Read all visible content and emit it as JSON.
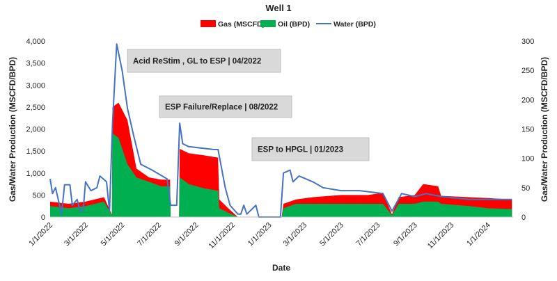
{
  "chart_data": {
    "type": "area",
    "title": "Well 1",
    "xlabel": "Date",
    "ylabel_left": "Gas/Water Production (MSCFD/BPD)",
    "ylabel_right": "Gas/Water Production (MSCFD/BPD)",
    "ylim_left": [
      0,
      4000
    ],
    "ylim_right": [
      0,
      300
    ],
    "left_ticks": [
      "0",
      "500",
      "1,000",
      "1,500",
      "2,000",
      "2,500",
      "3,000",
      "3,500",
      "4,000"
    ],
    "right_ticks": [
      "0",
      "50",
      "100",
      "150",
      "200",
      "250",
      "300"
    ],
    "x_ticks": [
      "1/1/2022",
      "3/1/2022",
      "5/1/2022",
      "7/1/2022",
      "9/1/2022",
      "11/1/2022",
      "1/1/2023",
      "3/1/2023",
      "5/1/2023",
      "7/1/2023",
      "9/1/2023",
      "11/1/2023",
      "1/1/2024"
    ],
    "legend_position": "top-center",
    "grid": false,
    "series": [
      {
        "name": "Gas (MSCFD)",
        "axis": "left",
        "type": "area",
        "color": "#ff0000",
        "points": [
          [
            "2022-01-01",
            0
          ],
          [
            "2022-01-01",
            350
          ],
          [
            "2022-02-01",
            300
          ],
          [
            "2022-03-01",
            350
          ],
          [
            "2022-04-01",
            450
          ],
          [
            "2022-04-14",
            50
          ],
          [
            "2022-04-15",
            2500
          ],
          [
            "2022-04-25",
            2600
          ],
          [
            "2022-05-10",
            2200
          ],
          [
            "2022-05-25",
            1100
          ],
          [
            "2022-06-15",
            900
          ],
          [
            "2022-07-05",
            850
          ],
          [
            "2022-07-20",
            850
          ],
          [
            "2022-07-21",
            0
          ],
          [
            "2022-08-04",
            0
          ],
          [
            "2022-08-05",
            1550
          ],
          [
            "2022-08-20",
            1450
          ],
          [
            "2022-09-15",
            1400
          ],
          [
            "2022-10-08",
            1350
          ],
          [
            "2022-10-10",
            400
          ],
          [
            "2022-10-25",
            200
          ],
          [
            "2022-11-10",
            0
          ],
          [
            "2023-01-22",
            0
          ],
          [
            "2023-01-25",
            300
          ],
          [
            "2023-02-15",
            400
          ],
          [
            "2023-03-15",
            450
          ],
          [
            "2023-05-01",
            500
          ],
          [
            "2023-06-15",
            500
          ],
          [
            "2023-07-10",
            550
          ],
          [
            "2023-07-25",
            60
          ],
          [
            "2023-08-05",
            450
          ],
          [
            "2023-09-01",
            500
          ],
          [
            "2023-09-15",
            750
          ],
          [
            "2023-10-10",
            700
          ],
          [
            "2023-10-15",
            480
          ],
          [
            "2023-12-01",
            450
          ],
          [
            "2024-01-01",
            430
          ],
          [
            "2024-02-10",
            400
          ]
        ]
      },
      {
        "name": "Oil (BPD)",
        "axis": "left",
        "type": "area",
        "color": "#00b050",
        "points": [
          [
            "2022-01-01",
            0
          ],
          [
            "2022-01-01",
            250
          ],
          [
            "2022-02-01",
            200
          ],
          [
            "2022-03-01",
            250
          ],
          [
            "2022-04-01",
            350
          ],
          [
            "2022-04-14",
            40
          ],
          [
            "2022-04-15",
            1900
          ],
          [
            "2022-04-25",
            1800
          ],
          [
            "2022-05-10",
            1200
          ],
          [
            "2022-05-25",
            900
          ],
          [
            "2022-06-15",
            800
          ],
          [
            "2022-07-05",
            700
          ],
          [
            "2022-07-20",
            700
          ],
          [
            "2022-07-21",
            0
          ],
          [
            "2022-08-04",
            0
          ],
          [
            "2022-08-05",
            900
          ],
          [
            "2022-08-20",
            750
          ],
          [
            "2022-09-15",
            650
          ],
          [
            "2022-10-08",
            600
          ],
          [
            "2022-10-10",
            200
          ],
          [
            "2022-10-25",
            100
          ],
          [
            "2022-11-10",
            0
          ],
          [
            "2023-01-22",
            0
          ],
          [
            "2023-01-25",
            200
          ],
          [
            "2023-02-15",
            300
          ],
          [
            "2023-03-15",
            300
          ],
          [
            "2023-05-01",
            300
          ],
          [
            "2023-06-15",
            300
          ],
          [
            "2023-07-10",
            300
          ],
          [
            "2023-07-25",
            40
          ],
          [
            "2023-08-05",
            300
          ],
          [
            "2023-09-01",
            300
          ],
          [
            "2023-09-15",
            350
          ],
          [
            "2023-10-10",
            350
          ],
          [
            "2023-10-15",
            300
          ],
          [
            "2023-12-01",
            250
          ],
          [
            "2024-01-01",
            200
          ],
          [
            "2024-02-10",
            180
          ]
        ]
      },
      {
        "name": "Water (BPD)",
        "axis": "right",
        "type": "line",
        "color": "#4472c4",
        "points": [
          [
            "2022-01-01",
            65
          ],
          [
            "2022-01-05",
            40
          ],
          [
            "2022-01-10",
            50
          ],
          [
            "2022-01-20",
            5
          ],
          [
            "2022-01-25",
            55
          ],
          [
            "2022-02-03",
            55
          ],
          [
            "2022-02-07",
            20
          ],
          [
            "2022-02-15",
            30
          ],
          [
            "2022-02-20",
            10
          ],
          [
            "2022-02-25",
            10
          ],
          [
            "2022-03-01",
            60
          ],
          [
            "2022-03-10",
            45
          ],
          [
            "2022-03-20",
            50
          ],
          [
            "2022-03-25",
            70
          ],
          [
            "2022-04-05",
            60
          ],
          [
            "2022-04-10",
            10
          ],
          [
            "2022-04-15",
            160
          ],
          [
            "2022-04-22",
            295
          ],
          [
            "2022-05-01",
            250
          ],
          [
            "2022-05-10",
            185
          ],
          [
            "2022-05-20",
            140
          ],
          [
            "2022-06-01",
            90
          ],
          [
            "2022-06-20",
            80
          ],
          [
            "2022-07-15",
            65
          ],
          [
            "2022-07-21",
            20
          ],
          [
            "2022-07-31",
            20
          ],
          [
            "2022-08-05",
            160
          ],
          [
            "2022-08-10",
            125
          ],
          [
            "2022-08-20",
            120
          ],
          [
            "2022-10-01",
            115
          ],
          [
            "2022-10-08",
            115
          ],
          [
            "2022-10-20",
            50
          ],
          [
            "2022-10-28",
            20
          ],
          [
            "2022-11-10",
            5
          ],
          [
            "2022-11-15",
            5
          ],
          [
            "2022-11-20",
            20
          ],
          [
            "2022-11-25",
            5
          ],
          [
            "2022-12-10",
            20
          ],
          [
            "2022-12-15",
            0
          ],
          [
            "2023-01-01",
            0
          ],
          [
            "2023-01-20",
            0
          ],
          [
            "2023-01-25",
            75
          ],
          [
            "2023-02-05",
            80
          ],
          [
            "2023-02-10",
            60
          ],
          [
            "2023-02-20",
            70
          ],
          [
            "2023-03-15",
            60
          ],
          [
            "2023-04-01",
            50
          ],
          [
            "2023-05-01",
            45
          ],
          [
            "2023-06-01",
            45
          ],
          [
            "2023-07-10",
            40
          ],
          [
            "2023-07-25",
            10
          ],
          [
            "2023-08-10",
            40
          ],
          [
            "2023-09-01",
            35
          ],
          [
            "2023-09-20",
            40
          ],
          [
            "2023-10-15",
            35
          ],
          [
            "2023-12-01",
            30
          ],
          [
            "2024-01-01",
            30
          ],
          [
            "2024-02-10",
            30
          ]
        ]
      }
    ],
    "annotations": [
      {
        "text": "Acid ReStim , GL to ESP | 04/2022",
        "date": "2022-04-15"
      },
      {
        "text": "ESP Failure/Replace  | 08/2022",
        "date": "2022-08-05"
      },
      {
        "text": "ESP to HPGL  | 01/2023",
        "date": "2023-01-25"
      }
    ]
  }
}
